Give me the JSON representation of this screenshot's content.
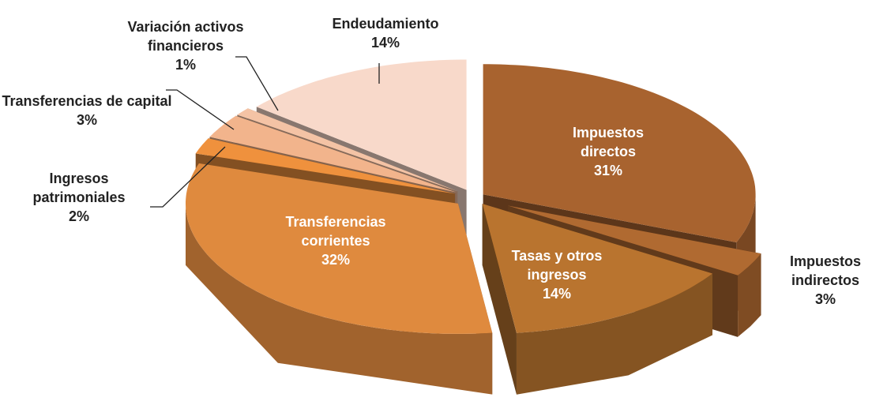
{
  "chart_data": {
    "type": "pie3d",
    "categories": [
      "Impuestos directos",
      "Impuestos indirectos",
      "Tasas y otros ingresos",
      "Transferencias corrientes",
      "Ingresos patrimoniales",
      "Transferencias de capital",
      "Variación activos financieros",
      "Endeudamiento"
    ],
    "values": [
      31,
      3,
      14,
      32,
      2,
      3,
      1,
      14
    ],
    "value_labels": [
      "31%",
      "3%",
      "14%",
      "32%",
      "2%",
      "3%",
      "1%",
      "14%"
    ],
    "colors": [
      "#a8632f",
      "#b06a31",
      "#b9742f",
      "#df8a3e",
      "#ef913d",
      "#f2b48c",
      "#f4c3a5",
      "#f8d9ca"
    ]
  }
}
